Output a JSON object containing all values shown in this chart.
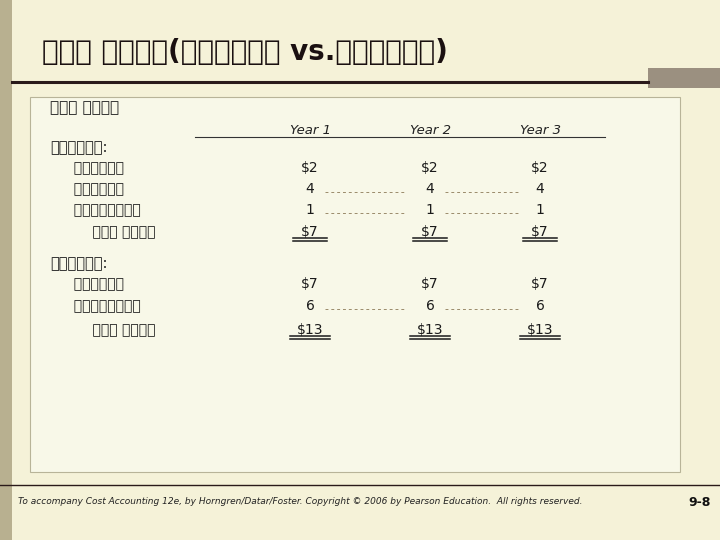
{
  "title": "단위당 제품원가(전부원가계산 vs.변동원가계산)",
  "bg_color": "#f5f2d8",
  "sidebar_color": "#b8b090",
  "table_bg": "#f8f8e8",
  "accent_color": "#9b9080",
  "dark_line": "#2a1a1a",
  "footer_text": "To accompany Cost Accounting 12e, by Horngren/Datar/Foster. Copyright © 2006 by Pearson Education.  All rights reserved.",
  "page_num": "9-8",
  "table_title": "단위당 제품원가",
  "col_headers": [
    "Year 1",
    "Year 2",
    "Year 3"
  ],
  "section1_header": "변동원가계산:",
  "section1_rows": [
    [
      "직접재료원가",
      "$2",
      "$2",
      "$2"
    ],
    [
      "직접노무원가",
      "4",
      "4",
      "4"
    ],
    [
      "변동제조간접원가",
      "1",
      "1",
      "1"
    ],
    [
      "단위당 제품원가",
      "$7",
      "$7",
      "$7"
    ]
  ],
  "section1_row_labels": [
    "  직접재료원가",
    "  직접노무원가",
    "  변동제조간접원가",
    "    단위당 제품원가"
  ],
  "section1_dotted": [
    1,
    2
  ],
  "section2_header": "전부원가계산:",
  "section2_rows": [
    [
      "변동제조원가",
      "$7",
      "$7",
      "$7"
    ],
    [
      "고정제조간접원가",
      "6",
      "6",
      "6"
    ],
    [
      "단위당 제품원가",
      "$13",
      "$13",
      "$13"
    ]
  ],
  "section2_row_labels": [
    "  변동제조원가",
    "  고정제조간접원가",
    "    단위당 제품원가"
  ],
  "section2_dotted": [
    1
  ]
}
